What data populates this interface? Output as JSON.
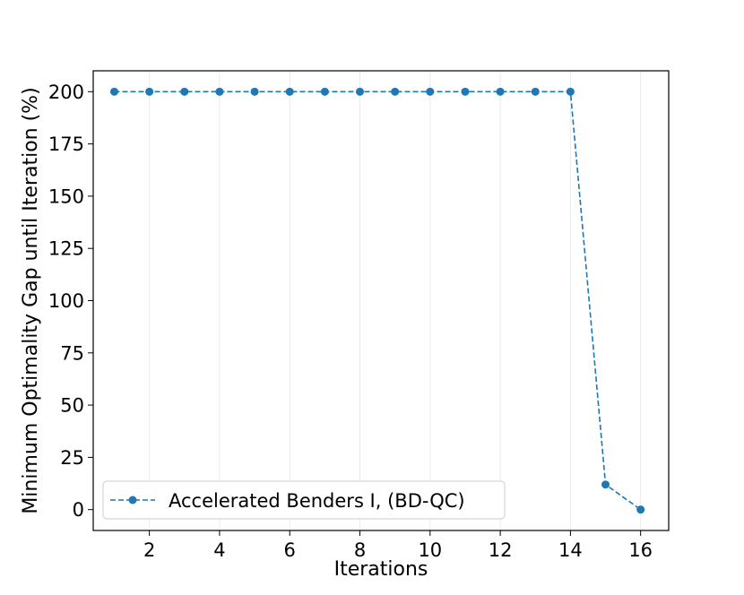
{
  "chart_data": {
    "type": "line",
    "title": "",
    "xlabel": "Iterations",
    "ylabel": "Minimum Optimality Gap until Iteration (%)",
    "xlim": [
      0.4,
      16.8
    ],
    "ylim": [
      -10,
      210
    ],
    "xticks": [
      2,
      4,
      6,
      8,
      10,
      12,
      14,
      16
    ],
    "yticks": [
      0,
      25,
      50,
      75,
      100,
      125,
      150,
      175,
      200
    ],
    "grid": "vertical",
    "legend_position": "lower-left",
    "series": [
      {
        "name": "Accelerated Benders I, (BD-QC)",
        "color": "#1f77b4",
        "linestyle": "dashed",
        "marker": "circle",
        "x": [
          1,
          2,
          3,
          4,
          5,
          6,
          7,
          8,
          9,
          10,
          11,
          12,
          13,
          14,
          15,
          16
        ],
        "y": [
          200,
          200,
          200,
          200,
          200,
          200,
          200,
          200,
          200,
          200,
          200,
          200,
          200,
          200,
          12,
          0
        ]
      }
    ]
  }
}
